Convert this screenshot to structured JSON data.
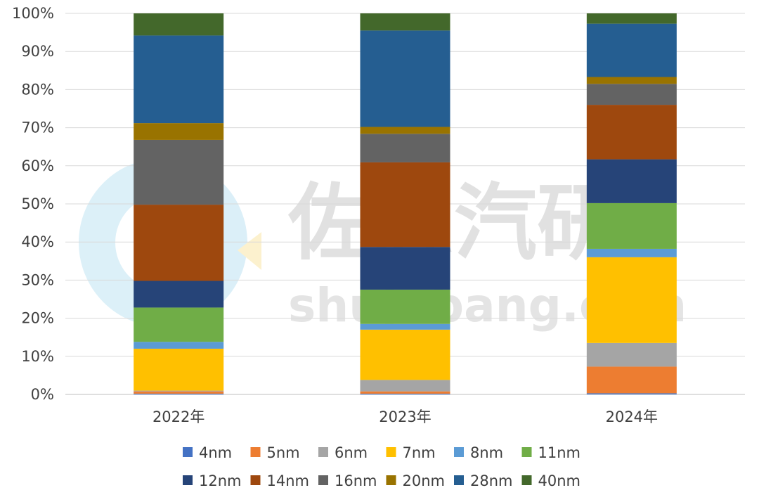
{
  "watermark": {
    "brand_cn": "佐思汽研",
    "brand_url": "shujubang.com"
  },
  "chart_data": {
    "type": "bar",
    "stacked": true,
    "normalized": true,
    "categories": [
      "2022年",
      "2023年",
      "2024年"
    ],
    "ylim": [
      0,
      100
    ],
    "yticks": [
      "0%",
      "10%",
      "20%",
      "30%",
      "40%",
      "50%",
      "60%",
      "70%",
      "80%",
      "90%",
      "100%"
    ],
    "grid": true,
    "legend_position": "bottom",
    "series": [
      {
        "name": "4nm",
        "color": "#4472c4",
        "values": [
          0.2,
          0.2,
          0.3
        ]
      },
      {
        "name": "5nm",
        "color": "#ed7d31",
        "values": [
          0.6,
          0.6,
          7.0
        ]
      },
      {
        "name": "6nm",
        "color": "#a5a5a5",
        "values": [
          0.2,
          3.0,
          6.2
        ]
      },
      {
        "name": "7nm",
        "color": "#ffc000",
        "values": [
          11.0,
          13.2,
          22.5
        ]
      },
      {
        "name": "8nm",
        "color": "#5b9bd5",
        "values": [
          1.8,
          1.5,
          2.2
        ]
      },
      {
        "name": "11nm",
        "color": "#70ad47",
        "values": [
          9.0,
          9.0,
          12.0
        ]
      },
      {
        "name": "12nm",
        "color": "#264478",
        "values": [
          7.0,
          11.2,
          11.5
        ]
      },
      {
        "name": "14nm",
        "color": "#9e480e",
        "values": [
          20.0,
          22.2,
          14.3
        ]
      },
      {
        "name": "16nm",
        "color": "#636363",
        "values": [
          17.0,
          7.5,
          5.5
        ]
      },
      {
        "name": "20nm",
        "color": "#997300",
        "values": [
          4.4,
          1.8,
          1.8
        ]
      },
      {
        "name": "28nm",
        "color": "#255e91",
        "values": [
          23.0,
          25.3,
          14.0
        ]
      },
      {
        "name": "40nm",
        "color": "#43682b",
        "values": [
          5.8,
          4.5,
          2.7
        ]
      }
    ]
  }
}
